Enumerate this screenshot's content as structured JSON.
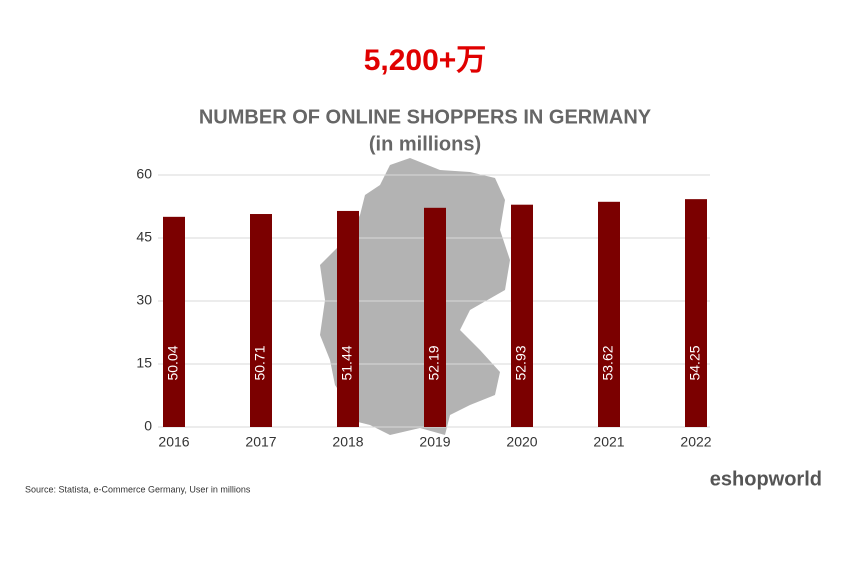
{
  "headline": "5,200+万",
  "chart_data": {
    "type": "bar",
    "title": "NUMBER OF ONLINE SHOPPERS IN GERMANY",
    "subtitle": "(in millions)",
    "categories": [
      "2016",
      "2017",
      "2018",
      "2019",
      "2020",
      "2021",
      "2022"
    ],
    "values": [
      50.04,
      50.71,
      51.44,
      52.19,
      52.93,
      53.62,
      54.25
    ],
    "color": "#7b0000",
    "ylim": [
      0,
      60
    ],
    "yticks": [
      0,
      15,
      30,
      45,
      60
    ],
    "grid": true
  },
  "source": "Source: Statista, e-Commerce Germany, User in millions",
  "logo": "eshopworld"
}
